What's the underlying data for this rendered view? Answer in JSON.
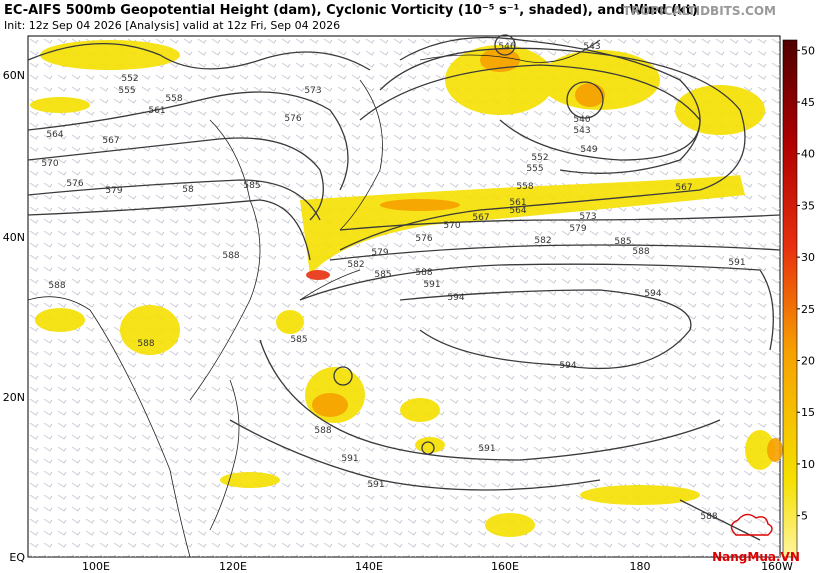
{
  "header": {
    "title": "EC-AIFS 500mb Geopotential Height (dam), Cyclonic Vorticity (10⁻⁵ s⁻¹, shaded), and Wind (kt)",
    "subtitle": "Init: 12z Sep 04 2026   [Analysis]   valid at 12z Fri, Sep 04 2026",
    "site": "TROPICALTIDBITS.COM"
  },
  "map": {
    "lat_labels": [
      "60N",
      "40N",
      "20N",
      "EQ"
    ],
    "lon_labels": [
      "100E",
      "120E",
      "140E",
      "160E",
      "180",
      "160W"
    ],
    "contour_labels": [
      "552",
      "555",
      "558",
      "561",
      "564",
      "567",
      "570",
      "576",
      "579",
      "58",
      "585",
      "573",
      "576",
      "588",
      "588",
      "588",
      "546",
      "543",
      "540",
      "543",
      "549",
      "552",
      "555",
      "558",
      "561",
      "564",
      "567",
      "570",
      "573",
      "576",
      "579",
      "582",
      "585",
      "588",
      "579",
      "582",
      "585",
      "588",
      "591",
      "594",
      "594",
      "591",
      "594",
      "585",
      "588",
      "591",
      "591",
      "591",
      "588",
      "567"
    ]
  },
  "colorbar": {
    "lim": [
      1,
      51
    ],
    "ticks": [
      5,
      10,
      15,
      20,
      25,
      30,
      35,
      40,
      45,
      50
    ]
  },
  "watermark": "NangMua.VN"
}
